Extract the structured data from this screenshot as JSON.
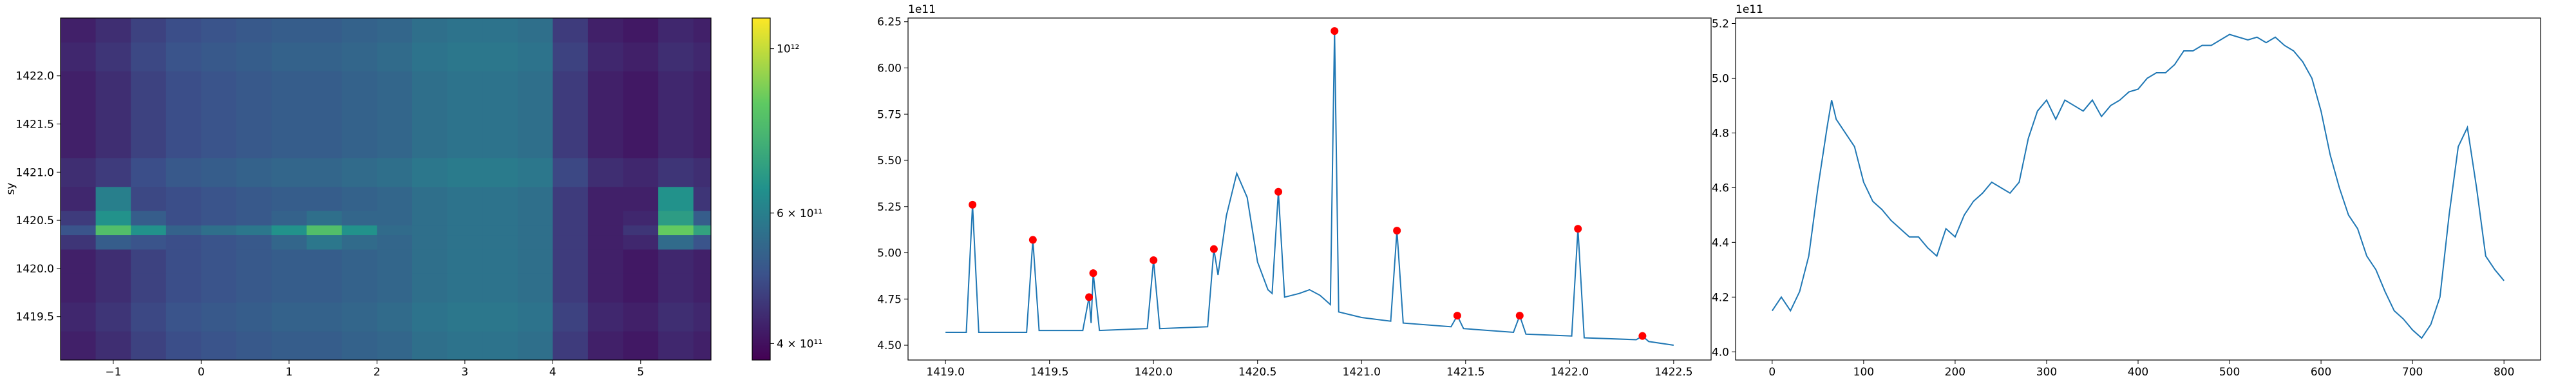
{
  "chart_data": [
    {
      "type": "heatmap",
      "ylabel": "sy",
      "x": [
        -1.4,
        -1.0,
        -0.6,
        -0.2,
        0.2,
        0.6,
        1.0,
        1.4,
        1.8,
        2.2,
        2.6,
        3.0,
        3.4,
        3.8,
        4.2,
        4.6,
        5.0,
        5.4,
        5.8
      ],
      "y": [
        1419.2,
        1419.5,
        1419.8,
        1420.1,
        1420.3,
        1420.4,
        1420.5,
        1420.7,
        1421.0,
        1421.3,
        1421.6,
        1421.9,
        1422.2,
        1422.5
      ],
      "z": [
        [
          420000000000.0,
          440000000000.0,
          470000000000.0,
          490000000000.0,
          500000000000.0,
          510000000000.0,
          520000000000.0,
          520000000000.0,
          530000000000.0,
          540000000000.0,
          560000000000.0,
          570000000000.0,
          570000000000.0,
          560000000000.0,
          460000000000.0,
          420000000000.0,
          410000000000.0,
          430000000000.0,
          420000000000.0
        ],
        [
          430000000000.0,
          450000000000.0,
          480000000000.0,
          500000000000.0,
          510000000000.0,
          520000000000.0,
          530000000000.0,
          530000000000.0,
          540000000000.0,
          550000000000.0,
          570000000000.0,
          580000000000.0,
          580000000000.0,
          570000000000.0,
          470000000000.0,
          430000000000.0,
          420000000000.0,
          440000000000.0,
          430000000000.0
        ],
        [
          420000000000.0,
          440000000000.0,
          470000000000.0,
          490000000000.0,
          500000000000.0,
          510000000000.0,
          520000000000.0,
          520000000000.0,
          530000000000.0,
          540000000000.0,
          560000000000.0,
          570000000000.0,
          570000000000.0,
          560000000000.0,
          460000000000.0,
          420000000000.0,
          410000000000.0,
          430000000000.0,
          420000000000.0
        ],
        [
          420000000000.0,
          440000000000.0,
          470000000000.0,
          490000000000.0,
          500000000000.0,
          510000000000.0,
          520000000000.0,
          520000000000.0,
          530000000000.0,
          540000000000.0,
          560000000000.0,
          570000000000.0,
          570000000000.0,
          560000000000.0,
          460000000000.0,
          420000000000.0,
          410000000000.0,
          430000000000.0,
          420000000000.0
        ],
        [
          450000000000.0,
          520000000000.0,
          500000000000.0,
          490000000000.0,
          500000000000.0,
          510000000000.0,
          540000000000.0,
          580000000000.0,
          550000000000.0,
          540000000000.0,
          560000000000.0,
          570000000000.0,
          570000000000.0,
          560000000000.0,
          460000000000.0,
          420000000000.0,
          430000000000.0,
          550000000000.0,
          500000000000.0
        ],
        [
          500000000000.0,
          800000000000.0,
          650000000000.0,
          530000000000.0,
          560000000000.0,
          580000000000.0,
          650000000000.0,
          800000000000.0,
          650000000000.0,
          550000000000.0,
          560000000000.0,
          570000000000.0,
          570000000000.0,
          560000000000.0,
          460000000000.0,
          420000000000.0,
          450000000000.0,
          850000000000.0,
          700000000000.0
        ],
        [
          460000000000.0,
          650000000000.0,
          520000000000.0,
          490000000000.0,
          500000000000.0,
          510000000000.0,
          530000000000.0,
          560000000000.0,
          540000000000.0,
          540000000000.0,
          560000000000.0,
          570000000000.0,
          570000000000.0,
          560000000000.0,
          460000000000.0,
          420000000000.0,
          430000000000.0,
          680000000000.0,
          520000000000.0
        ],
        [
          430000000000.0,
          600000000000.0,
          480000000000.0,
          490000000000.0,
          500000000000.0,
          510000000000.0,
          520000000000.0,
          520000000000.0,
          530000000000.0,
          540000000000.0,
          560000000000.0,
          570000000000.0,
          570000000000.0,
          560000000000.0,
          460000000000.0,
          420000000000.0,
          420000000000.0,
          650000000000.0,
          450000000000.0
        ],
        [
          440000000000.0,
          460000000000.0,
          490000000000.0,
          510000000000.0,
          520000000000.0,
          530000000000.0,
          540000000000.0,
          540000000000.0,
          550000000000.0,
          560000000000.0,
          580000000000.0,
          590000000000.0,
          590000000000.0,
          580000000000.0,
          480000000000.0,
          440000000000.0,
          430000000000.0,
          450000000000.0,
          440000000000.0
        ],
        [
          420000000000.0,
          440000000000.0,
          470000000000.0,
          490000000000.0,
          500000000000.0,
          510000000000.0,
          520000000000.0,
          520000000000.0,
          530000000000.0,
          540000000000.0,
          560000000000.0,
          570000000000.0,
          570000000000.0,
          560000000000.0,
          460000000000.0,
          420000000000.0,
          410000000000.0,
          430000000000.0,
          420000000000.0
        ],
        [
          420000000000.0,
          440000000000.0,
          470000000000.0,
          490000000000.0,
          500000000000.0,
          510000000000.0,
          520000000000.0,
          520000000000.0,
          530000000000.0,
          540000000000.0,
          560000000000.0,
          570000000000.0,
          570000000000.0,
          560000000000.0,
          460000000000.0,
          420000000000.0,
          410000000000.0,
          430000000000.0,
          420000000000.0
        ],
        [
          420000000000.0,
          440000000000.0,
          470000000000.0,
          490000000000.0,
          500000000000.0,
          510000000000.0,
          520000000000.0,
          520000000000.0,
          530000000000.0,
          540000000000.0,
          560000000000.0,
          570000000000.0,
          570000000000.0,
          560000000000.0,
          460000000000.0,
          420000000000.0,
          410000000000.0,
          430000000000.0,
          420000000000.0
        ],
        [
          430000000000.0,
          450000000000.0,
          480000000000.0,
          500000000000.0,
          510000000000.0,
          520000000000.0,
          530000000000.0,
          530000000000.0,
          540000000000.0,
          550000000000.0,
          570000000000.0,
          580000000000.0,
          580000000000.0,
          570000000000.0,
          470000000000.0,
          430000000000.0,
          420000000000.0,
          440000000000.0,
          430000000000.0
        ],
        [
          420000000000.0,
          440000000000.0,
          470000000000.0,
          490000000000.0,
          500000000000.0,
          510000000000.0,
          520000000000.0,
          520000000000.0,
          530000000000.0,
          540000000000.0,
          560000000000.0,
          570000000000.0,
          570000000000.0,
          560000000000.0,
          460000000000.0,
          420000000000.0,
          410000000000.0,
          430000000000.0,
          420000000000.0
        ]
      ],
      "xlim": [
        -1.6,
        5.8
      ],
      "ylim": [
        1419.05,
        1422.6
      ],
      "xticks": [
        {
          "value": -1,
          "label": "−1"
        },
        0,
        1,
        2,
        3,
        4,
        5
      ],
      "yticks": [
        1419.5,
        {
          "value": 1420,
          "label": "1420.0"
        },
        1420.5,
        {
          "value": 1421,
          "label": "1421.0"
        },
        1421.5,
        {
          "value": 1422,
          "label": "1422.0"
        }
      ],
      "colormap": "viridis",
      "color_scale": "log",
      "zlim": [
        380000000000.0,
        1100000000000.0
      ],
      "zticks": [
        {
          "value": 400000000000.0,
          "label": "4 × 10¹¹"
        },
        {
          "value": 600000000000.0,
          "label": "6 × 10¹¹"
        },
        {
          "value": 1000000000000.0,
          "label": "10¹²"
        }
      ]
    },
    {
      "type": "line",
      "offset_text": "1e11",
      "x": [
        1419.0,
        1419.1,
        1419.13,
        1419.16,
        1419.39,
        1419.42,
        1419.45,
        1419.66,
        1419.69,
        1419.7,
        1419.71,
        1419.74,
        1419.97,
        1420.0,
        1420.03,
        1420.26,
        1420.29,
        1420.31,
        1420.35,
        1420.4,
        1420.45,
        1420.5,
        1420.55,
        1420.57,
        1420.6,
        1420.63,
        1420.7,
        1420.75,
        1420.8,
        1420.85,
        1420.87,
        1420.89,
        1421.0,
        1421.14,
        1421.17,
        1421.2,
        1421.43,
        1421.46,
        1421.49,
        1421.73,
        1421.76,
        1421.79,
        1422.01,
        1422.04,
        1422.07,
        1422.32,
        1422.35,
        1422.38,
        1422.5
      ],
      "values": [
        4.57,
        4.57,
        5.26,
        4.57,
        4.57,
        5.07,
        4.58,
        4.58,
        4.76,
        4.62,
        4.89,
        4.58,
        4.59,
        4.96,
        4.59,
        4.6,
        5.02,
        4.88,
        5.2,
        5.43,
        5.3,
        4.95,
        4.8,
        4.78,
        5.33,
        4.76,
        4.78,
        4.8,
        4.77,
        4.72,
        6.2,
        4.68,
        4.65,
        4.63,
        5.12,
        4.62,
        4.6,
        4.66,
        4.59,
        4.57,
        4.66,
        4.56,
        4.55,
        5.13,
        4.54,
        4.53,
        4.55,
        4.52,
        4.5
      ],
      "color": "#1f77b4",
      "peaks": {
        "x": [
          1419.13,
          1419.42,
          1419.69,
          1419.71,
          1420.0,
          1420.29,
          1420.6,
          1420.87,
          1421.17,
          1421.46,
          1421.76,
          1422.04,
          1422.35
        ],
        "values": [
          5.26,
          5.07,
          4.76,
          4.89,
          4.96,
          5.02,
          5.33,
          6.2,
          5.12,
          4.66,
          4.66,
          5.13,
          4.55
        ],
        "color": "#ff0000"
      },
      "xlim": [
        1418.82,
        1422.68
      ],
      "ylim": [
        4.42,
        6.27
      ],
      "xticks": [
        {
          "value": 1419,
          "label": "1419.0"
        },
        1419.5,
        {
          "value": 1420,
          "label": "1420.0"
        },
        1420.5,
        {
          "value": 1421,
          "label": "1421.0"
        },
        1421.5,
        {
          "value": 1422,
          "label": "1422.0"
        },
        1422.5
      ],
      "yticks": [
        {
          "value": 4.5,
          "label": "4.50"
        },
        4.75,
        {
          "value": 5,
          "label": "5.00"
        },
        5.25,
        {
          "value": 5.5,
          "label": "5.50"
        },
        5.75,
        {
          "value": 6,
          "label": "6.00"
        },
        6.25
      ]
    },
    {
      "type": "line",
      "offset_text": "1e11",
      "x": [
        0,
        10,
        20,
        30,
        40,
        50,
        60,
        65,
        70,
        80,
        90,
        100,
        110,
        120,
        130,
        140,
        150,
        160,
        170,
        180,
        190,
        200,
        210,
        220,
        230,
        240,
        250,
        260,
        270,
        280,
        290,
        300,
        310,
        320,
        330,
        340,
        350,
        360,
        370,
        380,
        390,
        400,
        410,
        420,
        430,
        440,
        450,
        460,
        470,
        480,
        490,
        500,
        510,
        520,
        530,
        540,
        550,
        560,
        570,
        580,
        590,
        600,
        610,
        620,
        630,
        640,
        650,
        660,
        670,
        680,
        690,
        700,
        710,
        720,
        730,
        740,
        750,
        760,
        770,
        780,
        790,
        800
      ],
      "values": [
        4.15,
        4.2,
        4.15,
        4.22,
        4.35,
        4.6,
        4.82,
        4.92,
        4.85,
        4.8,
        4.75,
        4.62,
        4.55,
        4.52,
        4.48,
        4.45,
        4.42,
        4.42,
        4.38,
        4.35,
        4.45,
        4.42,
        4.5,
        4.55,
        4.58,
        4.62,
        4.6,
        4.58,
        4.62,
        4.78,
        4.88,
        4.92,
        4.85,
        4.92,
        4.9,
        4.88,
        4.92,
        4.86,
        4.9,
        4.92,
        4.95,
        4.96,
        5.0,
        5.02,
        5.02,
        5.05,
        5.1,
        5.1,
        5.12,
        5.12,
        5.14,
        5.16,
        5.15,
        5.14,
        5.15,
        5.13,
        5.15,
        5.12,
        5.1,
        5.06,
        5.0,
        4.88,
        4.72,
        4.6,
        4.5,
        4.45,
        4.35,
        4.3,
        4.22,
        4.15,
        4.12,
        4.08,
        4.05,
        4.1,
        4.2,
        4.5,
        4.75,
        4.82,
        4.6,
        4.35,
        4.3,
        4.26
      ],
      "color": "#1f77b4",
      "xlim": [
        -40,
        840
      ],
      "ylim": [
        3.97,
        5.22
      ],
      "xticks": [
        0,
        100,
        200,
        300,
        400,
        500,
        600,
        700,
        800
      ],
      "yticks": [
        {
          "value": 4,
          "label": "4.0"
        },
        4.2,
        4.4,
        4.6,
        4.8,
        {
          "value": 5,
          "label": "5.0"
        },
        5.2
      ]
    }
  ]
}
